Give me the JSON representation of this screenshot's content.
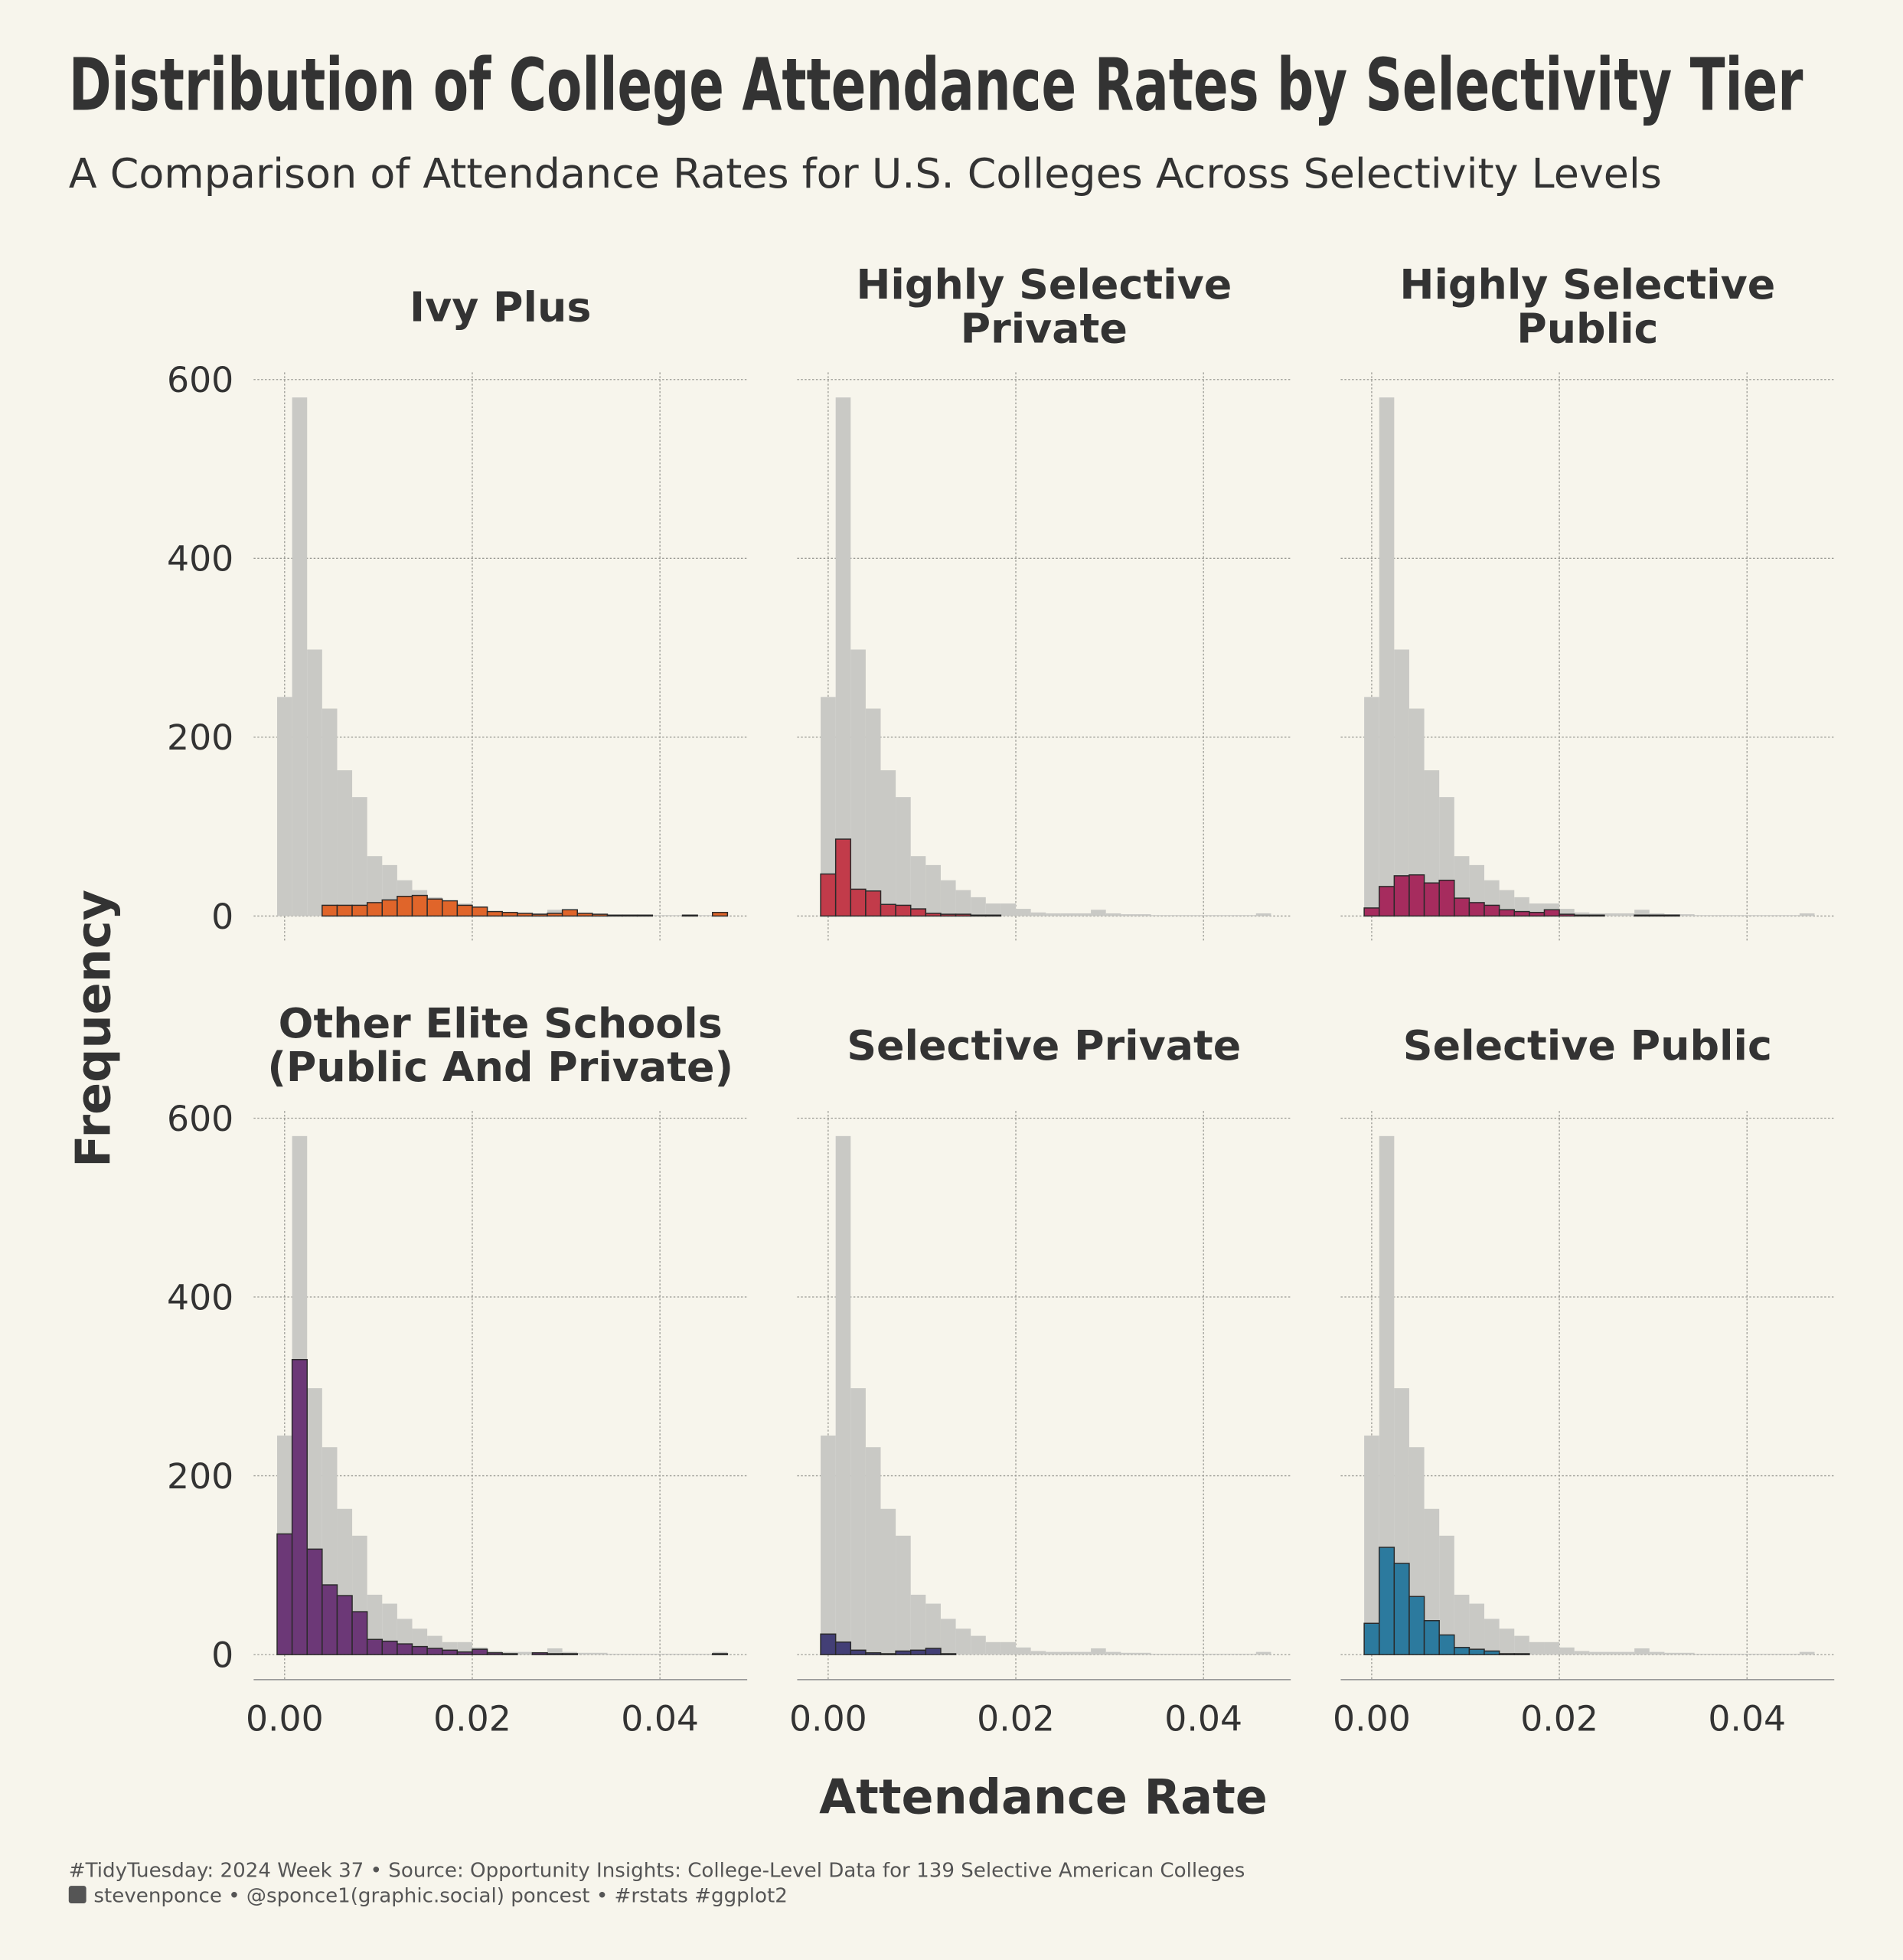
{
  "chart_data": {
    "type": "histogram",
    "title": "Distribution of College Attendance Rates by Selectivity Tier",
    "subtitle": "A Comparison of Attendance Rates for U.S. Colleges Across Selectivity Levels",
    "xlabel": "Attendance Rate",
    "ylabel": "Frequency",
    "caption": [
      "#TidyTuesday: 2024 Week 37 • Source: Opportunity Insights: College-Level Data for 139 Selective American Colleges",
      "stevenponce • @sponce1(graphic.social) poncest • #rstats #ggplot2"
    ],
    "bins": [
      -0.0008,
      0.0008,
      0.0024,
      0.004,
      0.0056,
      0.0072,
      0.0088,
      0.0104,
      0.012,
      0.0136,
      0.0152,
      0.0168,
      0.0184,
      0.02,
      0.0216,
      0.0232,
      0.0248,
      0.0264,
      0.028,
      0.0296,
      0.0312,
      0.0328,
      0.0344,
      0.036,
      0.0376,
      0.0392,
      0.0408,
      0.0424,
      0.044,
      0.0456,
      0.0472
    ],
    "xlim": [
      -0.0033,
      0.0493
    ],
    "ylim": [
      -28,
      608
    ],
    "xticks": [
      {
        "value": 0,
        "label": "0.00"
      },
      {
        "value": 0.02,
        "label": "0.02"
      },
      {
        "value": 0.04,
        "label": "0.04"
      }
    ],
    "yticks": [
      0,
      200,
      400,
      600
    ],
    "grid": true,
    "background": {
      "color": "#c9c9c5",
      "values": [
        245,
        580,
        298,
        232,
        163,
        133,
        67,
        57,
        40,
        29,
        21,
        14,
        14,
        8,
        4,
        3,
        3,
        3,
        7,
        3,
        2,
        2,
        1,
        1,
        1,
        1,
        1,
        1,
        1,
        3
      ]
    },
    "panels": [
      {
        "title": "Ivy Plus",
        "color": "#e0652a",
        "values": [
          0,
          0,
          0,
          12,
          12,
          12,
          15,
          18,
          22,
          23,
          19,
          17,
          12,
          10,
          5,
          4,
          3,
          2,
          3,
          7,
          3,
          2,
          1,
          1,
          1,
          0,
          0,
          1,
          0,
          4
        ]
      },
      {
        "title": "Highly Selective\nPrivate",
        "color": "#c23b4a",
        "values": [
          47,
          86,
          30,
          28,
          13,
          12,
          8,
          3,
          2,
          2,
          1,
          1,
          0,
          0,
          0,
          0,
          0,
          0,
          0,
          0,
          0,
          0,
          0,
          0,
          0,
          0,
          0,
          0,
          0,
          0
        ]
      },
      {
        "title": "Highly Selective\nPublic",
        "color": "#a62c5e",
        "values": [
          9,
          33,
          45,
          46,
          37,
          40,
          20,
          15,
          12,
          7,
          5,
          4,
          7,
          2,
          1,
          1,
          0,
          0,
          1,
          1,
          1,
          0,
          0,
          0,
          0,
          0,
          0,
          0,
          0,
          0
        ]
      },
      {
        "title": "Other Elite Schools\n(Public And Private)",
        "color": "#6c3877",
        "values": [
          135,
          330,
          118,
          78,
          66,
          48,
          17,
          15,
          12,
          9,
          7,
          5,
          3,
          6,
          2,
          1,
          0,
          2,
          1,
          1,
          0,
          0,
          0,
          0,
          0,
          0,
          0,
          0,
          0,
          1
        ]
      },
      {
        "title": "Selective Private",
        "color": "#433f76",
        "values": [
          23,
          14,
          5,
          2,
          1,
          4,
          5,
          7,
          1,
          0,
          0,
          0,
          0,
          0,
          0,
          0,
          0,
          0,
          0,
          0,
          0,
          0,
          0,
          0,
          0,
          0,
          0,
          0,
          0,
          0
        ]
      },
      {
        "title": "Selective Public",
        "color": "#2c7a9e",
        "values": [
          35,
          120,
          102,
          65,
          38,
          22,
          8,
          6,
          4,
          1,
          1,
          0,
          0,
          0,
          0,
          0,
          0,
          0,
          0,
          0,
          0,
          0,
          0,
          0,
          0,
          0,
          0,
          0,
          0,
          0
        ]
      }
    ]
  }
}
